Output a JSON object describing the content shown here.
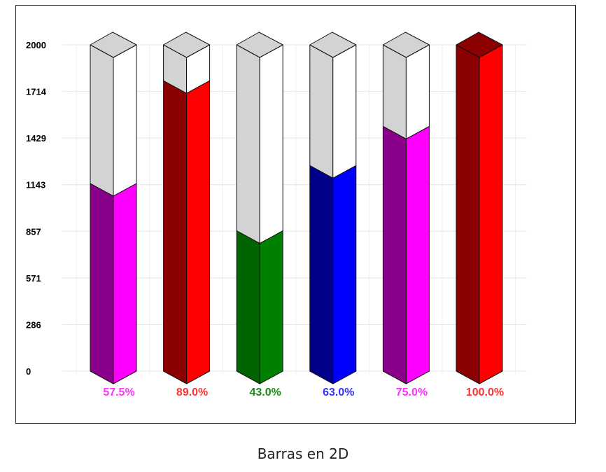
{
  "caption": "Barras en 2D",
  "chart_data": {
    "type": "bar",
    "title": "",
    "xlabel": "",
    "ylabel": "",
    "ylim": [
      0,
      2000
    ],
    "y_ticks": [
      "0",
      "286",
      "571",
      "857",
      "1143",
      "1429",
      "1714",
      "2000"
    ],
    "grid": true,
    "categories": [
      "57.5%",
      "89.0%",
      "43.0%",
      "63.0%",
      "75.0%",
      "100.0%"
    ],
    "values": [
      1150,
      1780,
      860,
      1260,
      1500,
      2000
    ],
    "capacity": 2000,
    "bars": [
      {
        "label": "57.5%",
        "value": 1150,
        "front_color": "#ff00ff",
        "side_color": "#8b008b",
        "label_color": "#ff33ff"
      },
      {
        "label": "89.0%",
        "value": 1780,
        "front_color": "#ff0000",
        "side_color": "#8b0000",
        "label_color": "#ff3333"
      },
      {
        "label": "43.0%",
        "value": 860,
        "front_color": "#008000",
        "side_color": "#006400",
        "label_color": "#1a8a1a"
      },
      {
        "label": "63.0%",
        "value": 1260,
        "front_color": "#0000ff",
        "side_color": "#00008b",
        "label_color": "#3333ff"
      },
      {
        "label": "75.0%",
        "value": 1500,
        "front_color": "#ff00ff",
        "side_color": "#8b008b",
        "label_color": "#ff33ff"
      },
      {
        "label": "100.0%",
        "value": 2000,
        "front_color": "#ff0000",
        "side_color": "#8b0000",
        "label_color": "#ff3333"
      }
    ],
    "empty_colors": {
      "side": "#d3d3d3",
      "front": "#ffffff",
      "top": "#d3d3d3"
    }
  }
}
